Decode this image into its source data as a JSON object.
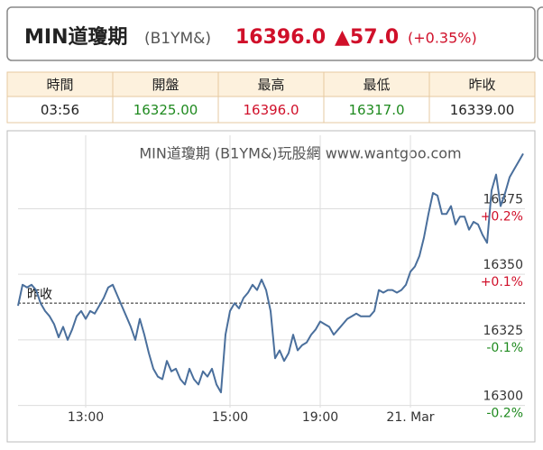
{
  "header": {
    "name": "MIN道瓊期",
    "code": "(B1YM&)",
    "price": "16396.0",
    "change": "▲57.0",
    "change_pct": "(+0.35%)"
  },
  "table": {
    "headers": [
      "時間",
      "開盤",
      "最高",
      "最低",
      "昨收"
    ],
    "rows": [
      [
        "03:56",
        "16325.00",
        "16396.0",
        "16317.0",
        "16339.00"
      ]
    ],
    "colors": [
      "#222222",
      "#1f8a1f",
      "#d0102a",
      "#1f8a1f",
      "#222222"
    ]
  },
  "chart_data": {
    "type": "line",
    "title": "MIN道瓊期 (B1YM&)玩股網 www.wantgoo.com",
    "series": [
      {
        "color": "#4a6f9c",
        "values": [
          16338,
          16346,
          16345,
          16346,
          16344,
          16339,
          16336,
          16334,
          16331,
          16326,
          16330,
          16325,
          16329,
          16334,
          16336,
          16333,
          16336,
          16335,
          16338,
          16341,
          16345,
          16346,
          16342,
          16338,
          16334,
          16330,
          16325,
          16333,
          16327,
          16320,
          16314,
          16311,
          16310,
          16317,
          16313,
          16314,
          16310,
          16308,
          16314,
          16310,
          16308,
          16313,
          16311,
          16314,
          16308,
          16305,
          16327,
          16336,
          16339,
          16337,
          16341,
          16343,
          16346,
          16344,
          16348,
          16344,
          16336,
          16318,
          16321,
          16317,
          16320,
          16327,
          16321,
          16323,
          16324,
          16327,
          16329,
          16332,
          16331,
          16330,
          16327,
          16329,
          16331,
          16333,
          16334,
          16335,
          16334,
          16334,
          16334,
          16336,
          16344,
          16343,
          16344,
          16344,
          16343,
          16344,
          16346,
          16351,
          16353,
          16357,
          16364,
          16373,
          16381,
          16380,
          16373,
          16373,
          16376,
          16369,
          16372,
          16372,
          16367,
          16370,
          16369,
          16365,
          16362,
          16382,
          16388,
          16376,
          16381,
          16387,
          16390,
          16393,
          16396
        ]
      }
    ],
    "xlim": [
      0,
      112
    ],
    "xticks": [
      {
        "value": 15,
        "label": "13:00"
      },
      {
        "value": 47,
        "label": "15:00"
      },
      {
        "value": 67,
        "label": "19:00"
      },
      {
        "value": 87,
        "label": "21. Mar"
      }
    ],
    "ylim": [
      16293,
      16403
    ],
    "yticks": [
      16300,
      16325,
      16350,
      16375
    ],
    "ytick_change_labels": [
      "-0.2%",
      "-0.1%",
      "+0.1%",
      "+0.2%"
    ],
    "reference_line": {
      "value": 16339,
      "label": "昨收"
    },
    "grid": true
  }
}
